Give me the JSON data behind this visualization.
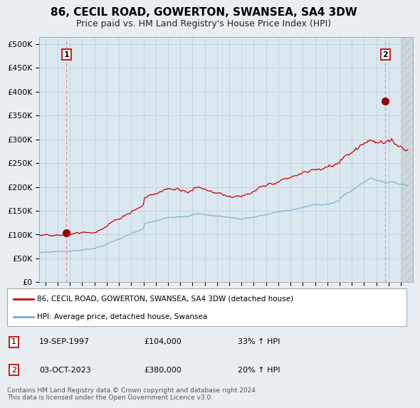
{
  "title": "86, CECIL ROAD, GOWERTON, SWANSEA, SA4 3DW",
  "subtitle": "Price paid vs. HM Land Registry's House Price Index (HPI)",
  "yticks": [
    0,
    50000,
    100000,
    150000,
    200000,
    250000,
    300000,
    350000,
    400000,
    450000,
    500000
  ],
  "ytick_labels": [
    "£0",
    "£50K",
    "£100K",
    "£150K",
    "£200K",
    "£250K",
    "£300K",
    "£350K",
    "£400K",
    "£450K",
    "£500K"
  ],
  "xlim_start": 1995.5,
  "xlim_end": 2026.0,
  "ylim": [
    0,
    515000
  ],
  "sale1_x": 1997.72,
  "sale1_y": 104000,
  "sale2_x": 2023.75,
  "sale2_y": 380000,
  "line1_color": "#cc0000",
  "line2_color": "#7aadcc",
  "dashed_line_color": "#ee8888",
  "marker_color": "#990000",
  "marker_size": 7,
  "legend1_label": "86, CECIL ROAD, GOWERTON, SWANSEA, SA4 3DW (detached house)",
  "legend2_label": "HPI: Average price, detached house, Swansea",
  "sale1_label": "1",
  "sale1_date": "19-SEP-1997",
  "sale1_price": "£104,000",
  "sale1_hpi": "33% ↑ HPI",
  "sale2_label": "2",
  "sale2_date": "03-OCT-2023",
  "sale2_price": "£380,000",
  "sale2_hpi": "20% ↑ HPI",
  "footer": "Contains HM Land Registry data © Crown copyright and database right 2024.\nThis data is licensed under the Open Government Licence v3.0.",
  "background_color": "#e8eef2",
  "plot_background": "#dce8f0",
  "grid_color": "#b8ccd8",
  "title_fontsize": 11,
  "subtitle_fontsize": 9,
  "tick_fontsize": 8
}
